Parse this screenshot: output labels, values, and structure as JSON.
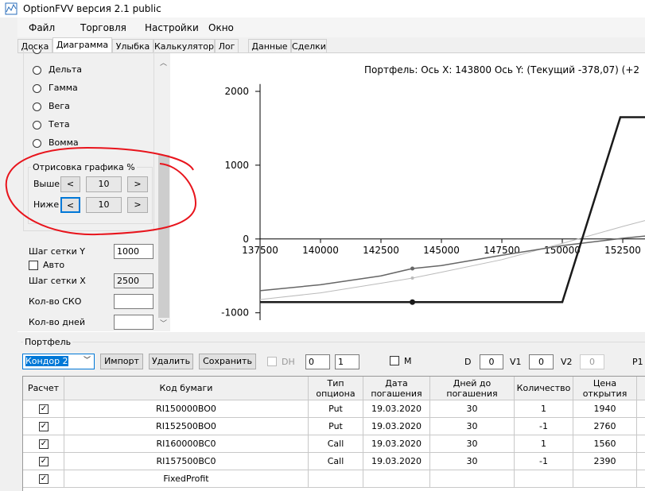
{
  "window": {
    "title": "OptionFVV версия 2.1 public"
  },
  "menu": [
    "Файл",
    "Торговля",
    "Настройки",
    "Окно"
  ],
  "tabs": [
    "Доска",
    "Диаграмма",
    "Улыбка",
    "Калькулятор",
    "Лог",
    "Данные",
    "Сделки"
  ],
  "left_panel": {
    "radios": [
      "Дельта",
      "Гамма",
      "Вега",
      "Тета",
      "Вомма"
    ],
    "draw_group": {
      "title": "Отрисовка графика %",
      "rows": [
        {
          "label": "Выше",
          "prev": "<",
          "value": "10",
          "next": ">"
        },
        {
          "label": "Ниже",
          "prev": "<",
          "value": "10",
          "next": ">"
        }
      ]
    },
    "grid_y": {
      "label": "Шаг сетки Y",
      "value": "1000"
    },
    "auto": "Авто",
    "grid_x": {
      "label": "Шаг сетки X",
      "value": "2500"
    },
    "sko": "Кол-во СКО",
    "days": "Кол-во дней"
  },
  "chart_data": {
    "type": "line",
    "title": "Портфель: Ось X: 143800 Ось Y:  (Текущий -378,07)  (+2",
    "xlim": [
      137500,
      153420
    ],
    "xticks": [
      137500,
      140000,
      142500,
      145000,
      147500,
      150000,
      152500
    ],
    "ylim": [
      -1100,
      2100
    ],
    "yticks": [
      -1000,
      0,
      1000,
      2000
    ],
    "cursor_x": 143800,
    "series": [
      {
        "color": "#bbbbbb",
        "width": 1,
        "x": [
          137500,
          140000,
          142500,
          143800,
          145000,
          147500,
          150000,
          152500,
          153420
        ],
        "values": [
          -820,
          -730,
          -600,
          -530,
          -450,
          -280,
          -60,
          170,
          250
        ]
      },
      {
        "color": "#666666",
        "width": 1.5,
        "x": [
          137500,
          140000,
          142500,
          143800,
          145000,
          147500,
          150000,
          152500,
          153420
        ],
        "values": [
          -700,
          -620,
          -500,
          -400,
          -360,
          -220,
          -90,
          10,
          40
        ]
      },
      {
        "color": "#1a1a1a",
        "width": 2.5,
        "x": [
          137500,
          143800,
          150000,
          152400,
          153420
        ],
        "values": [
          -855,
          -855,
          -855,
          1650,
          1650
        ]
      }
    ]
  },
  "portfolio": {
    "title": "Портфель",
    "select": "Кондор 2",
    "buttons": [
      "Импорт",
      "Удалить",
      "Сохранить"
    ],
    "dh": "DH",
    "spin1": "0",
    "spin2": "1",
    "m": "M",
    "d": {
      "label": "D",
      "value": "0"
    },
    "v1": {
      "label": "V1",
      "value": "0"
    },
    "v2": {
      "label": "V2",
      "value": "0"
    },
    "p1": "P1",
    "table": {
      "headers": [
        "Расчет",
        "Код бумаги",
        "Тип опциона",
        "Дата погашения",
        "Дней до погашения",
        "Количество",
        "Цена открытия"
      ],
      "rows": [
        [
          "RI150000BO0",
          "Put",
          "19.03.2020",
          "30",
          "1",
          "1940"
        ],
        [
          "RI152500BO0",
          "Put",
          "19.03.2020",
          "30",
          "-1",
          "2760"
        ],
        [
          "RI160000BC0",
          "Call",
          "19.03.2020",
          "30",
          "1",
          "1560"
        ],
        [
          "RI157500BC0",
          "Call",
          "19.03.2020",
          "30",
          "-1",
          "2390"
        ],
        [
          "FixedProfit"
        ]
      ]
    }
  }
}
